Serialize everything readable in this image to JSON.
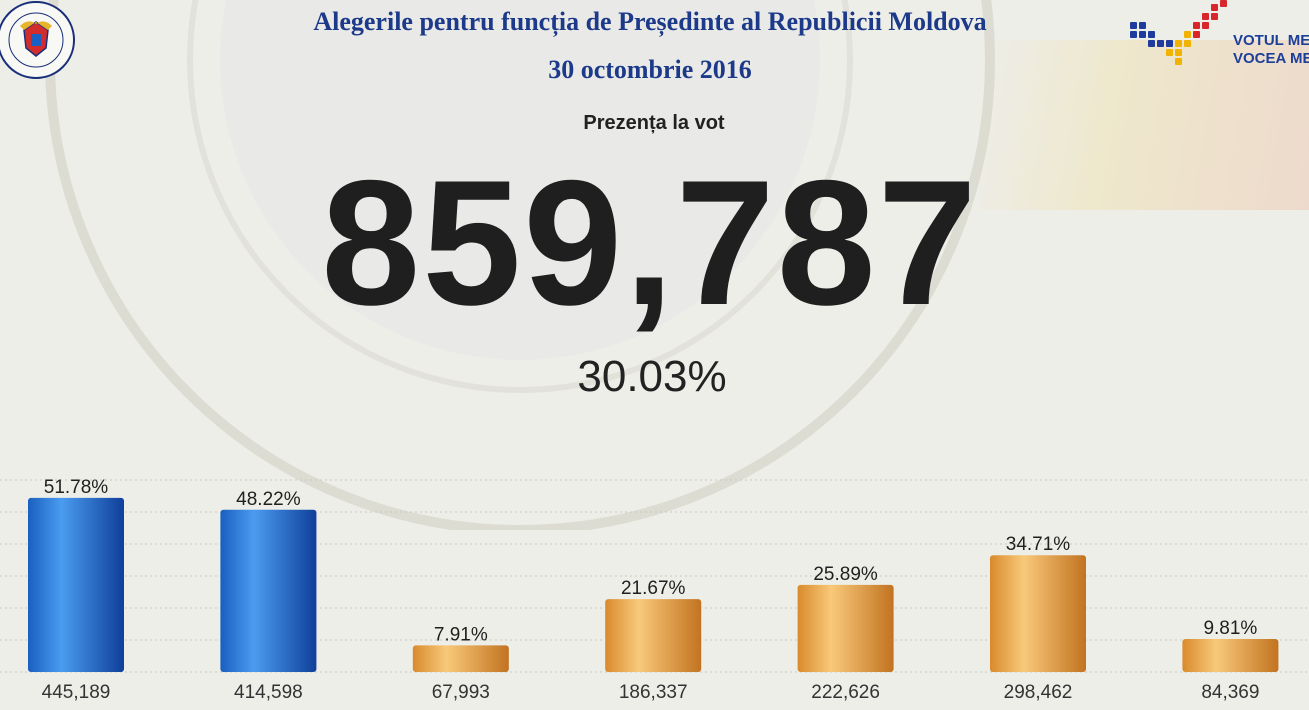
{
  "header": {
    "title": "Alegerile pentru funcția de Președinte al Republicii Moldova",
    "date": "30 octombrie 2016",
    "seal_text": "REPUBLICA MOLDOVA · COMISIA ELECTORALĂ CENTRALĂ",
    "brand_line1": "VOTUL ME",
    "brand_line2": "VOCEA ME"
  },
  "turnout": {
    "label": "Prezența la vot",
    "count": "859,787",
    "percent": "30.03%"
  },
  "colors": {
    "title": "#1d3a8a",
    "blue_bar": "#2a78d8",
    "orange_bar": "#e8a64a",
    "background": "#eeeee9"
  },
  "chart_data": {
    "type": "bar",
    "categories": [
      "445,189",
      "414,598",
      "67,993",
      "186,337",
      "222,626",
      "298,462",
      "84,369"
    ],
    "values": [
      51.78,
      48.22,
      7.91,
      21.67,
      25.89,
      34.71,
      9.81
    ],
    "value_labels": [
      "51.78%",
      "48.22%",
      "7.91%",
      "21.67%",
      "25.89%",
      "34.71%",
      "9.81%"
    ],
    "bar_colors": [
      "blue",
      "blue",
      "orange",
      "orange",
      "orange",
      "orange",
      "orange"
    ],
    "ylim": [
      0,
      55
    ],
    "grid": true
  }
}
